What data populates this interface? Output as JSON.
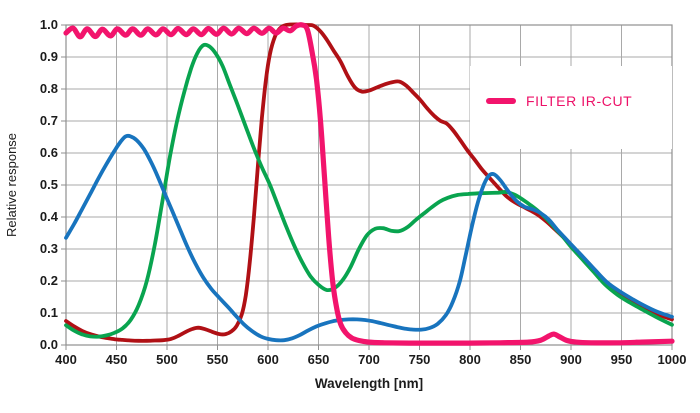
{
  "chart_data": {
    "type": "line",
    "title": "",
    "xlabel": "Wavelength [nm]",
    "ylabel": "Relative response",
    "xlim": [
      400,
      1000
    ],
    "ylim": [
      0.0,
      1.0
    ],
    "grid": true,
    "x_tick_values": [
      400,
      450,
      500,
      550,
      600,
      650,
      700,
      750,
      800,
      850,
      900,
      950,
      1000
    ],
    "x_tick_labels": [
      "400",
      "450",
      "500",
      "550",
      "600",
      "650",
      "700",
      "750",
      "800",
      "850",
      "900",
      "950",
      "1000"
    ],
    "y_tick_values": [
      0.0,
      0.1,
      0.2,
      0.3,
      0.4,
      0.5,
      0.6,
      0.7,
      0.8,
      0.9,
      1.0
    ],
    "y_tick_labels": [
      "0.0",
      "0.1",
      "0.2",
      "0.3",
      "0.4",
      "0.5",
      "0.6",
      "0.7",
      "0.8",
      "0.9",
      "1.0"
    ],
    "legend": {
      "label": "FILTER IR-CUT",
      "position": "upper-right-inside",
      "text_color": "#ED1168"
    },
    "style": {
      "grid_color": "#a9a9a9",
      "axis_color": "#8f8f8f",
      "tick_text_color": "#1c1c1c",
      "background": "#ffffff"
    },
    "series": [
      {
        "name": "red-channel-response",
        "color": "#B01015",
        "width": 3.8,
        "points": [
          [
            400,
            0.075
          ],
          [
            408,
            0.058
          ],
          [
            416,
            0.044
          ],
          [
            424,
            0.034
          ],
          [
            432,
            0.027
          ],
          [
            440,
            0.022
          ],
          [
            448,
            0.018
          ],
          [
            456,
            0.016
          ],
          [
            464,
            0.014
          ],
          [
            472,
            0.013
          ],
          [
            480,
            0.013
          ],
          [
            488,
            0.014
          ],
          [
            496,
            0.015
          ],
          [
            504,
            0.019
          ],
          [
            511,
            0.028
          ],
          [
            518,
            0.04
          ],
          [
            525,
            0.05
          ],
          [
            531,
            0.054
          ],
          [
            538,
            0.049
          ],
          [
            545,
            0.041
          ],
          [
            552,
            0.034
          ],
          [
            558,
            0.034
          ],
          [
            564,
            0.043
          ],
          [
            569,
            0.06
          ],
          [
            574,
            0.095
          ],
          [
            578,
            0.155
          ],
          [
            582,
            0.26
          ],
          [
            586,
            0.4
          ],
          [
            590,
            0.56
          ],
          [
            594,
            0.71
          ],
          [
            598,
            0.83
          ],
          [
            602,
            0.91
          ],
          [
            607,
            0.965
          ],
          [
            612,
            0.99
          ],
          [
            618,
            1.0
          ],
          [
            628,
            1.002
          ],
          [
            638,
            1.0
          ],
          [
            645,
            0.998
          ],
          [
            652,
            0.98
          ],
          [
            658,
            0.955
          ],
          [
            665,
            0.92
          ],
          [
            672,
            0.885
          ],
          [
            679,
            0.84
          ],
          [
            686,
            0.805
          ],
          [
            693,
            0.792
          ],
          [
            700,
            0.795
          ],
          [
            708,
            0.805
          ],
          [
            716,
            0.815
          ],
          [
            724,
            0.822
          ],
          [
            730,
            0.823
          ],
          [
            737,
            0.81
          ],
          [
            744,
            0.788
          ],
          [
            751,
            0.765
          ],
          [
            758,
            0.738
          ],
          [
            765,
            0.715
          ],
          [
            771,
            0.7
          ],
          [
            777,
            0.692
          ],
          [
            783,
            0.672
          ],
          [
            790,
            0.642
          ],
          [
            797,
            0.61
          ],
          [
            804,
            0.582
          ],
          [
            812,
            0.548
          ],
          [
            820,
            0.52
          ],
          [
            828,
            0.492
          ],
          [
            836,
            0.465
          ],
          [
            844,
            0.447
          ],
          [
            852,
            0.433
          ],
          [
            860,
            0.42
          ],
          [
            868,
            0.405
          ],
          [
            876,
            0.385
          ],
          [
            884,
            0.362
          ],
          [
            892,
            0.338
          ],
          [
            900,
            0.31
          ],
          [
            910,
            0.28
          ],
          [
            922,
            0.24
          ],
          [
            934,
            0.2
          ],
          [
            946,
            0.17
          ],
          [
            958,
            0.145
          ],
          [
            970,
            0.122
          ],
          [
            984,
            0.098
          ],
          [
            1000,
            0.08
          ]
        ]
      },
      {
        "name": "green-channel-response",
        "color": "#09A44F",
        "width": 3.8,
        "points": [
          [
            400,
            0.062
          ],
          [
            408,
            0.045
          ],
          [
            416,
            0.033
          ],
          [
            424,
            0.027
          ],
          [
            432,
            0.026
          ],
          [
            440,
            0.03
          ],
          [
            448,
            0.038
          ],
          [
            456,
            0.052
          ],
          [
            464,
            0.078
          ],
          [
            472,
            0.125
          ],
          [
            480,
            0.2
          ],
          [
            488,
            0.315
          ],
          [
            496,
            0.46
          ],
          [
            503,
            0.59
          ],
          [
            510,
            0.7
          ],
          [
            517,
            0.79
          ],
          [
            524,
            0.865
          ],
          [
            530,
            0.912
          ],
          [
            536,
            0.937
          ],
          [
            542,
            0.933
          ],
          [
            548,
            0.912
          ],
          [
            555,
            0.872
          ],
          [
            562,
            0.815
          ],
          [
            570,
            0.75
          ],
          [
            578,
            0.682
          ],
          [
            586,
            0.615
          ],
          [
            594,
            0.555
          ],
          [
            602,
            0.5
          ],
          [
            610,
            0.435
          ],
          [
            618,
            0.37
          ],
          [
            626,
            0.31
          ],
          [
            634,
            0.258
          ],
          [
            642,
            0.215
          ],
          [
            650,
            0.188
          ],
          [
            658,
            0.172
          ],
          [
            666,
            0.178
          ],
          [
            674,
            0.203
          ],
          [
            682,
            0.245
          ],
          [
            690,
            0.3
          ],
          [
            698,
            0.343
          ],
          [
            706,
            0.363
          ],
          [
            714,
            0.365
          ],
          [
            722,
            0.357
          ],
          [
            730,
            0.356
          ],
          [
            738,
            0.368
          ],
          [
            746,
            0.39
          ],
          [
            754,
            0.41
          ],
          [
            762,
            0.43
          ],
          [
            770,
            0.448
          ],
          [
            778,
            0.46
          ],
          [
            788,
            0.469
          ],
          [
            798,
            0.472
          ],
          [
            808,
            0.474
          ],
          [
            818,
            0.475
          ],
          [
            828,
            0.476
          ],
          [
            836,
            0.478
          ],
          [
            844,
            0.47
          ],
          [
            852,
            0.455
          ],
          [
            860,
            0.437
          ],
          [
            868,
            0.417
          ],
          [
            876,
            0.393
          ],
          [
            884,
            0.366
          ],
          [
            892,
            0.338
          ],
          [
            900,
            0.307
          ],
          [
            910,
            0.272
          ],
          [
            922,
            0.23
          ],
          [
            934,
            0.188
          ],
          [
            946,
            0.157
          ],
          [
            958,
            0.133
          ],
          [
            970,
            0.112
          ],
          [
            984,
            0.088
          ],
          [
            1000,
            0.063
          ]
        ]
      },
      {
        "name": "blue-channel-response",
        "color": "#1874BE",
        "width": 3.8,
        "points": [
          [
            400,
            0.335
          ],
          [
            408,
            0.378
          ],
          [
            416,
            0.425
          ],
          [
            424,
            0.472
          ],
          [
            432,
            0.52
          ],
          [
            440,
            0.565
          ],
          [
            448,
            0.607
          ],
          [
            454,
            0.635
          ],
          [
            459,
            0.652
          ],
          [
            464,
            0.652
          ],
          [
            470,
            0.64
          ],
          [
            477,
            0.613
          ],
          [
            484,
            0.573
          ],
          [
            491,
            0.525
          ],
          [
            498,
            0.472
          ],
          [
            505,
            0.42
          ],
          [
            512,
            0.368
          ],
          [
            520,
            0.308
          ],
          [
            528,
            0.255
          ],
          [
            536,
            0.21
          ],
          [
            544,
            0.175
          ],
          [
            552,
            0.147
          ],
          [
            560,
            0.12
          ],
          [
            568,
            0.092
          ],
          [
            576,
            0.065
          ],
          [
            584,
            0.044
          ],
          [
            592,
            0.028
          ],
          [
            600,
            0.019
          ],
          [
            608,
            0.015
          ],
          [
            616,
            0.015
          ],
          [
            624,
            0.021
          ],
          [
            632,
            0.032
          ],
          [
            640,
            0.046
          ],
          [
            648,
            0.058
          ],
          [
            656,
            0.067
          ],
          [
            664,
            0.074
          ],
          [
            672,
            0.078
          ],
          [
            680,
            0.08
          ],
          [
            688,
            0.08
          ],
          [
            696,
            0.078
          ],
          [
            704,
            0.074
          ],
          [
            712,
            0.068
          ],
          [
            720,
            0.062
          ],
          [
            728,
            0.056
          ],
          [
            736,
            0.051
          ],
          [
            744,
            0.048
          ],
          [
            752,
            0.048
          ],
          [
            760,
            0.053
          ],
          [
            768,
            0.066
          ],
          [
            776,
            0.093
          ],
          [
            783,
            0.135
          ],
          [
            790,
            0.2
          ],
          [
            796,
            0.285
          ],
          [
            802,
            0.372
          ],
          [
            808,
            0.448
          ],
          [
            814,
            0.503
          ],
          [
            819,
            0.53
          ],
          [
            824,
            0.533
          ],
          [
            830,
            0.515
          ],
          [
            838,
            0.48
          ],
          [
            846,
            0.45
          ],
          [
            854,
            0.432
          ],
          [
            862,
            0.424
          ],
          [
            870,
            0.412
          ],
          [
            878,
            0.392
          ],
          [
            886,
            0.362
          ],
          [
            894,
            0.335
          ],
          [
            902,
            0.308
          ],
          [
            912,
            0.275
          ],
          [
            924,
            0.234
          ],
          [
            936,
            0.195
          ],
          [
            948,
            0.168
          ],
          [
            960,
            0.145
          ],
          [
            972,
            0.124
          ],
          [
            986,
            0.103
          ],
          [
            1000,
            0.088
          ]
        ]
      },
      {
        "name": "ir-cut-filter",
        "color": "#F2146C",
        "width": 5.2,
        "points": [
          [
            400,
            0.975
          ],
          [
            407,
            0.99
          ],
          [
            414,
            0.963
          ],
          [
            421,
            0.988
          ],
          [
            429,
            0.964
          ],
          [
            436,
            0.987
          ],
          [
            444,
            0.966
          ],
          [
            451,
            0.988
          ],
          [
            459,
            0.968
          ],
          [
            466,
            0.988
          ],
          [
            474,
            0.968
          ],
          [
            481,
            0.988
          ],
          [
            489,
            0.969
          ],
          [
            496,
            0.988
          ],
          [
            504,
            0.97
          ],
          [
            511,
            0.989
          ],
          [
            519,
            0.97
          ],
          [
            526,
            0.988
          ],
          [
            534,
            0.97
          ],
          [
            541,
            0.989
          ],
          [
            549,
            0.971
          ],
          [
            556,
            0.99
          ],
          [
            564,
            0.972
          ],
          [
            571,
            0.99
          ],
          [
            579,
            0.973
          ],
          [
            586,
            0.99
          ],
          [
            594,
            0.974
          ],
          [
            601,
            0.99
          ],
          [
            608,
            0.975
          ],
          [
            615,
            0.99
          ],
          [
            622,
            0.982
          ],
          [
            628,
            0.997
          ],
          [
            634,
            1.0
          ],
          [
            639,
            0.985
          ],
          [
            644,
            0.91
          ],
          [
            648,
            0.83
          ],
          [
            652,
            0.7
          ],
          [
            656,
            0.52
          ],
          [
            660,
            0.34
          ],
          [
            664,
            0.2
          ],
          [
            668,
            0.115
          ],
          [
            672,
            0.065
          ],
          [
            677,
            0.038
          ],
          [
            683,
            0.022
          ],
          [
            690,
            0.014
          ],
          [
            700,
            0.009
          ],
          [
            715,
            0.007
          ],
          [
            740,
            0.006
          ],
          [
            770,
            0.006
          ],
          [
            800,
            0.006
          ],
          [
            830,
            0.007
          ],
          [
            858,
            0.009
          ],
          [
            870,
            0.015
          ],
          [
            878,
            0.028
          ],
          [
            883,
            0.034
          ],
          [
            889,
            0.025
          ],
          [
            896,
            0.014
          ],
          [
            905,
            0.009
          ],
          [
            920,
            0.007
          ],
          [
            945,
            0.007
          ],
          [
            970,
            0.009
          ],
          [
            1000,
            0.012
          ]
        ]
      }
    ]
  }
}
